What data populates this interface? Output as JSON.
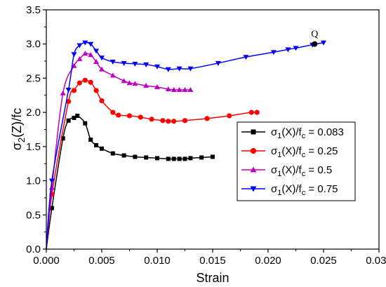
{
  "chart_data": {
    "type": "line",
    "xlabel": "Strain",
    "ylabel_parts": {
      "base": "σ",
      "sub": "2",
      "rest": "(Z)/fc"
    },
    "xlim": [
      0,
      0.03
    ],
    "ylim": [
      0,
      3.5
    ],
    "x_ticks": [
      "0.000",
      "0.005",
      "0.010",
      "0.015",
      "0.020",
      "0.025",
      "0.030"
    ],
    "y_ticks": [
      "0.0",
      "0.5",
      "1.0",
      "1.5",
      "2.0",
      "2.5",
      "3.0",
      "3.5"
    ],
    "grid": false,
    "legend_position": "right",
    "annotation": {
      "label": "Q",
      "x": 0.0242,
      "y": 3.0
    },
    "series": [
      {
        "legend_parts": {
          "base": "σ",
          "sub1": "1",
          "mid": "(X)/f",
          "sub2": "c",
          "value": " = 0.083"
        },
        "color": "#000000",
        "marker": "square",
        "points": [
          [
            0.0,
            0.0
          ],
          [
            0.0005,
            0.6
          ],
          [
            0.0015,
            1.62
          ],
          [
            0.002,
            1.88
          ],
          [
            0.0025,
            1.92
          ],
          [
            0.0028,
            1.95
          ],
          [
            0.0035,
            1.84
          ],
          [
            0.004,
            1.6
          ],
          [
            0.0045,
            1.52
          ],
          [
            0.005,
            1.47
          ],
          [
            0.006,
            1.4
          ],
          [
            0.007,
            1.37
          ],
          [
            0.008,
            1.35
          ],
          [
            0.009,
            1.34
          ],
          [
            0.01,
            1.33
          ],
          [
            0.011,
            1.32
          ],
          [
            0.0115,
            1.32
          ],
          [
            0.012,
            1.32
          ],
          [
            0.0125,
            1.32
          ],
          [
            0.013,
            1.33
          ],
          [
            0.014,
            1.34
          ],
          [
            0.015,
            1.35
          ]
        ]
      },
      {
        "legend_parts": {
          "base": "σ",
          "sub1": "1",
          "mid": "(X)/f",
          "sub2": "c",
          "value": " = 0.25"
        },
        "color": "#ff0000",
        "marker": "circle",
        "points": [
          [
            0.0,
            0.0
          ],
          [
            0.0005,
            0.8
          ],
          [
            0.002,
            2.16
          ],
          [
            0.0025,
            2.32
          ],
          [
            0.003,
            2.43
          ],
          [
            0.0035,
            2.47
          ],
          [
            0.004,
            2.44
          ],
          [
            0.0045,
            2.32
          ],
          [
            0.005,
            2.17
          ],
          [
            0.006,
            2.0
          ],
          [
            0.0065,
            1.96
          ],
          [
            0.0075,
            1.95
          ],
          [
            0.0085,
            1.93
          ],
          [
            0.0095,
            1.9
          ],
          [
            0.0105,
            1.88
          ],
          [
            0.011,
            1.87
          ],
          [
            0.0115,
            1.87
          ],
          [
            0.0125,
            1.88
          ],
          [
            0.0145,
            1.91
          ],
          [
            0.0165,
            1.95
          ],
          [
            0.0185,
            2.0
          ],
          [
            0.019,
            2.0
          ]
        ]
      },
      {
        "legend_parts": {
          "base": "σ",
          "sub1": "1",
          "mid": "(X)/f",
          "sub2": "c",
          "value": " = 0.5"
        },
        "color": "#c000c0",
        "marker": "triangle-up",
        "points": [
          [
            0.0,
            0.0
          ],
          [
            0.0005,
            0.9
          ],
          [
            0.0015,
            2.28
          ],
          [
            0.0025,
            2.68
          ],
          [
            0.003,
            2.78
          ],
          [
            0.0035,
            2.86
          ],
          [
            0.004,
            2.84
          ],
          [
            0.0045,
            2.74
          ],
          [
            0.005,
            2.63
          ],
          [
            0.006,
            2.54
          ],
          [
            0.007,
            2.46
          ],
          [
            0.0075,
            2.43
          ],
          [
            0.008,
            2.42
          ],
          [
            0.009,
            2.39
          ],
          [
            0.01,
            2.37
          ],
          [
            0.011,
            2.34
          ],
          [
            0.0115,
            2.33
          ],
          [
            0.012,
            2.33
          ],
          [
            0.0125,
            2.33
          ],
          [
            0.013,
            2.33
          ]
        ]
      },
      {
        "legend_parts": {
          "base": "σ",
          "sub1": "1",
          "mid": "(X)/f",
          "sub2": "c",
          "value": " = 0.75"
        },
        "color": "#0000ff",
        "marker": "triangle-down",
        "points": [
          [
            0.0,
            0.0
          ],
          [
            0.0005,
            1.0
          ],
          [
            0.002,
            2.33
          ],
          [
            0.0025,
            2.85
          ],
          [
            0.003,
            2.98
          ],
          [
            0.0035,
            3.02
          ],
          [
            0.004,
            3.0
          ],
          [
            0.0045,
            2.9
          ],
          [
            0.005,
            2.8
          ],
          [
            0.006,
            2.74
          ],
          [
            0.007,
            2.72
          ],
          [
            0.008,
            2.71
          ],
          [
            0.009,
            2.7
          ],
          [
            0.01,
            2.67
          ],
          [
            0.011,
            2.63
          ],
          [
            0.012,
            2.64
          ],
          [
            0.013,
            2.64
          ],
          [
            0.0155,
            2.72
          ],
          [
            0.018,
            2.81
          ],
          [
            0.0205,
            2.88
          ],
          [
            0.0218,
            2.92
          ],
          [
            0.0225,
            2.94
          ],
          [
            0.024,
            2.99
          ],
          [
            0.025,
            3.02
          ]
        ]
      }
    ]
  }
}
